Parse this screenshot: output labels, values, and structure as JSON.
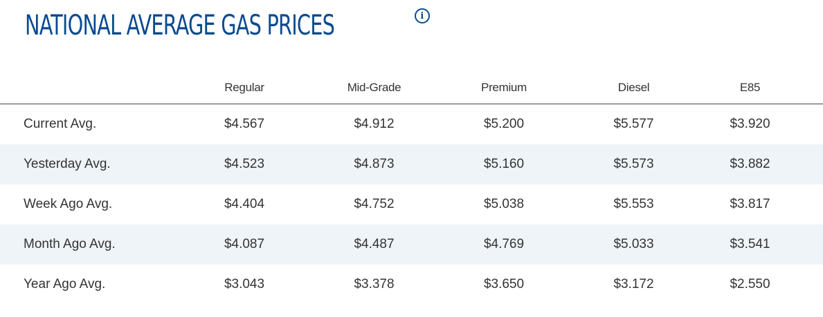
{
  "header": {
    "title": "NATIONAL AVERAGE GAS PRICES",
    "info_icon": "info-circle-icon"
  },
  "colors": {
    "title": "#0b4a8f",
    "shaded_row": "#eef4f8",
    "text": "#333333"
  },
  "table": {
    "columns": [
      "",
      "Regular",
      "Mid-Grade",
      "Premium",
      "Diesel",
      "E85"
    ],
    "rows": [
      {
        "label": "Current Avg.",
        "values": [
          "$4.567",
          "$4.912",
          "$5.200",
          "$5.577",
          "$3.920"
        ]
      },
      {
        "label": "Yesterday Avg.",
        "values": [
          "$4.523",
          "$4.873",
          "$5.160",
          "$5.573",
          "$3.882"
        ]
      },
      {
        "label": "Week Ago Avg.",
        "values": [
          "$4.404",
          "$4.752",
          "$5.038",
          "$5.553",
          "$3.817"
        ]
      },
      {
        "label": "Month Ago Avg.",
        "values": [
          "$4.087",
          "$4.487",
          "$4.769",
          "$5.033",
          "$3.541"
        ]
      },
      {
        "label": "Year Ago Avg.",
        "values": [
          "$3.043",
          "$3.378",
          "$3.650",
          "$3.172",
          "$2.550"
        ]
      }
    ]
  }
}
